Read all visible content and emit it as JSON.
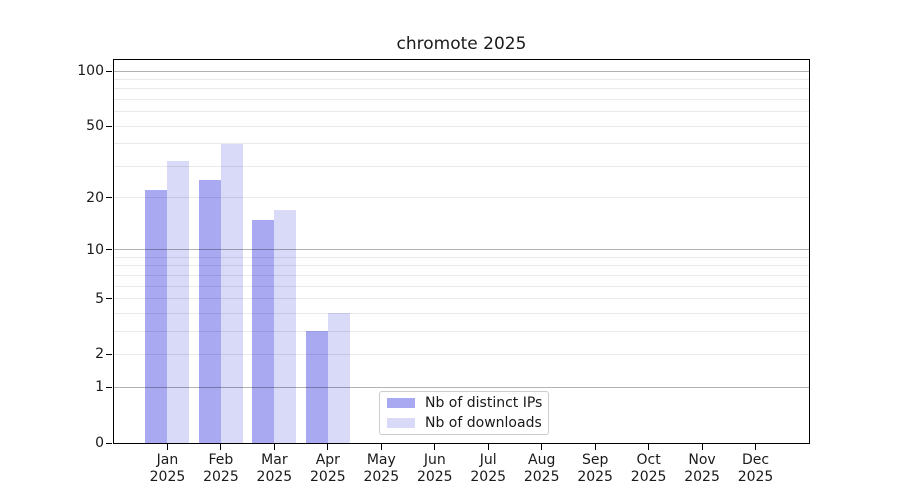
{
  "title": "chromote 2025",
  "chart_data": {
    "type": "bar",
    "title": "chromote 2025",
    "xlabel": "",
    "ylabel": "",
    "categories": [
      "Jan 2025",
      "Feb 2025",
      "Mar 2025",
      "Apr 2025",
      "May 2025",
      "Jun 2025",
      "Jul 2025",
      "Aug 2025",
      "Sep 2025",
      "Oct 2025",
      "Nov 2025",
      "Dec 2025"
    ],
    "x_tick_months": [
      "Jan",
      "Feb",
      "Mar",
      "Apr",
      "May",
      "Jun",
      "Jul",
      "Aug",
      "Sep",
      "Oct",
      "Nov",
      "Dec"
    ],
    "x_tick_year": "2025",
    "series": [
      {
        "name": "Nb of distinct IPs",
        "color": "#a9a9f1",
        "values": [
          22,
          25,
          15,
          3,
          0,
          0,
          0,
          0,
          0,
          0,
          0,
          0
        ]
      },
      {
        "name": "Nb of downloads",
        "color": "#d9d9f8",
        "values": [
          32,
          40,
          17,
          4,
          0,
          0,
          0,
          0,
          0,
          0,
          0,
          0
        ]
      }
    ],
    "yscale": "log1p",
    "ylim": [
      0,
      115
    ],
    "y_ticks": [
      0,
      1,
      2,
      5,
      10,
      20,
      50,
      100
    ],
    "y_gridlines_major": [
      1,
      10,
      100
    ],
    "y_gridlines_minor": [
      2,
      3,
      4,
      5,
      6,
      7,
      8,
      9,
      20,
      30,
      40,
      50,
      60,
      70,
      80,
      90
    ],
    "grid": true,
    "legend_position": "lower center"
  },
  "colors": {
    "bar_distinct_ips": "#a9a9f1",
    "bar_downloads": "#d9d9f8",
    "major_grid": "#b3b3b3",
    "minor_grid": "#e8e8e8",
    "spine": "#000000",
    "text": "#1a1a1a",
    "legend_border": "#cccccc",
    "background": "#ffffff"
  }
}
